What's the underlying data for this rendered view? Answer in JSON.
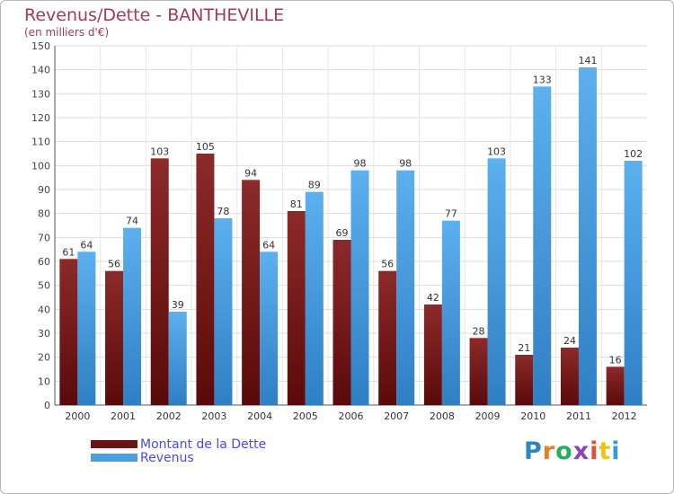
{
  "chart_data": {
    "type": "bar",
    "title": "Revenus/Dette - BANTHEVILLE",
    "subtitle": "(en milliers d'€)",
    "categories": [
      "2000",
      "2001",
      "2002",
      "2003",
      "2004",
      "2005",
      "2006",
      "2007",
      "2008",
      "2009",
      "2010",
      "2011",
      "2012"
    ],
    "series": [
      {
        "name": "Montant de la Dette",
        "color": "#7a1a1a",
        "values": [
          61,
          56,
          103,
          105,
          94,
          81,
          69,
          56,
          42,
          28,
          21,
          24,
          16
        ]
      },
      {
        "name": "Revenus",
        "color": "#4a9fe0",
        "values": [
          64,
          74,
          39,
          78,
          64,
          89,
          98,
          98,
          77,
          103,
          133,
          141,
          102
        ]
      }
    ],
    "ylim": [
      0,
      150
    ],
    "yticks": [
      0,
      10,
      20,
      30,
      40,
      50,
      60,
      70,
      80,
      90,
      100,
      110,
      120,
      130,
      140,
      150
    ],
    "grid": true,
    "legend_position": "bottom-left"
  },
  "logo": {
    "text": "Proxiti",
    "colors": [
      "#2e86c1",
      "#e67e22",
      "#27ae60",
      "#8e44ad",
      "#e74c3c",
      "#f1c40f",
      "#3498db"
    ]
  }
}
